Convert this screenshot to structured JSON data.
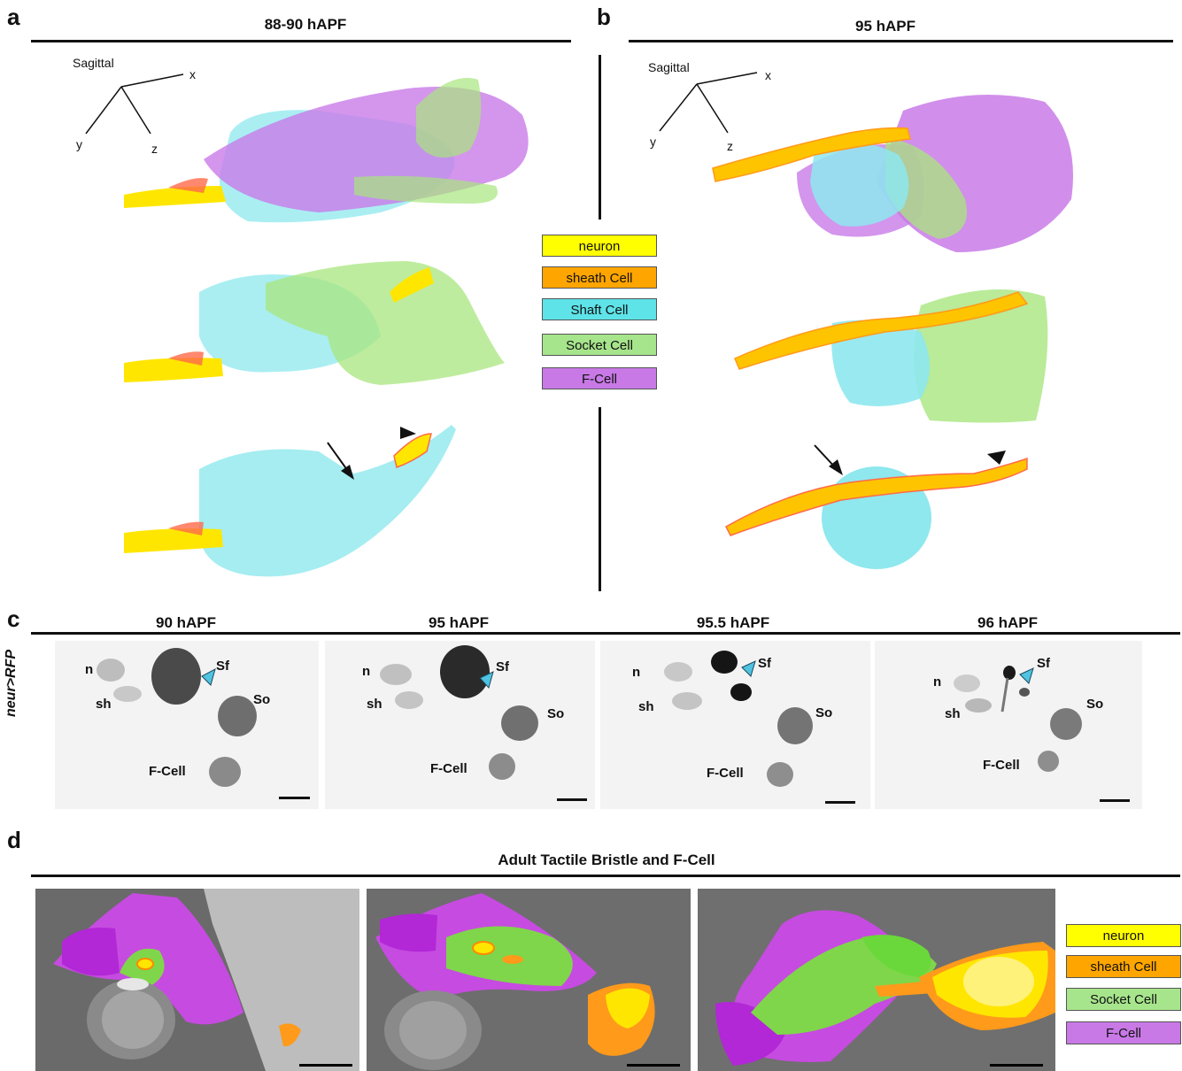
{
  "panels": {
    "a": {
      "letter": "a",
      "title": "88-90 hAPF",
      "axes": {
        "label": "Sagittal",
        "x": "x",
        "y": "y",
        "z": "z"
      }
    },
    "b": {
      "letter": "b",
      "title": "95 hAPF",
      "axes": {
        "label": "Sagittal",
        "x": "x",
        "y": "y",
        "z": "z"
      }
    },
    "c": {
      "letter": "c",
      "row_label": "neur>RFP",
      "frames": [
        {
          "title": "90 hAPF",
          "labels": {
            "n": "n",
            "sh": "sh",
            "sf": "Sf",
            "so": "So",
            "fcell": "F-Cell"
          }
        },
        {
          "title": "95 hAPF",
          "labels": {
            "n": "n",
            "sh": "sh",
            "sf": "Sf",
            "so": "So",
            "fcell": "F-Cell"
          }
        },
        {
          "title": "95.5 hAPF",
          "labels": {
            "n": "n",
            "sh": "sh",
            "sf": "Sf",
            "so": "So",
            "fcell": "F-Cell"
          }
        },
        {
          "title": "96 hAPF",
          "labels": {
            "n": "n",
            "sh": "sh",
            "sf": "Sf",
            "so": "So",
            "fcell": "F-Cell"
          }
        }
      ]
    },
    "d": {
      "letter": "d",
      "title": "Adult Tactile Bristle and F-Cell"
    }
  },
  "legend_top": [
    {
      "label": "neuron",
      "color": "#ffff00"
    },
    {
      "label": "sheath Cell",
      "color": "#ffa500"
    },
    {
      "label": "Shaft Cell",
      "color": "#5ee3e8"
    },
    {
      "label": "Socket Cell",
      "color": "#a7e58c"
    },
    {
      "label": "F-Cell",
      "color": "#c879e6"
    }
  ],
  "legend_bottom": [
    {
      "label": "neuron",
      "color": "#ffff00"
    },
    {
      "label": "sheath Cell",
      "color": "#ffa500"
    },
    {
      "label": "Socket Cell",
      "color": "#a7e58c"
    },
    {
      "label": "F-Cell",
      "color": "#c879e6"
    }
  ],
  "colors": {
    "neuron": "#ffe600",
    "sheath": "#ff9a1a",
    "shaft": "#8ee8ee",
    "socket": "#a8e67e",
    "fcell": "#c97ae8",
    "arrowhead_c": "#4fc3e0"
  }
}
